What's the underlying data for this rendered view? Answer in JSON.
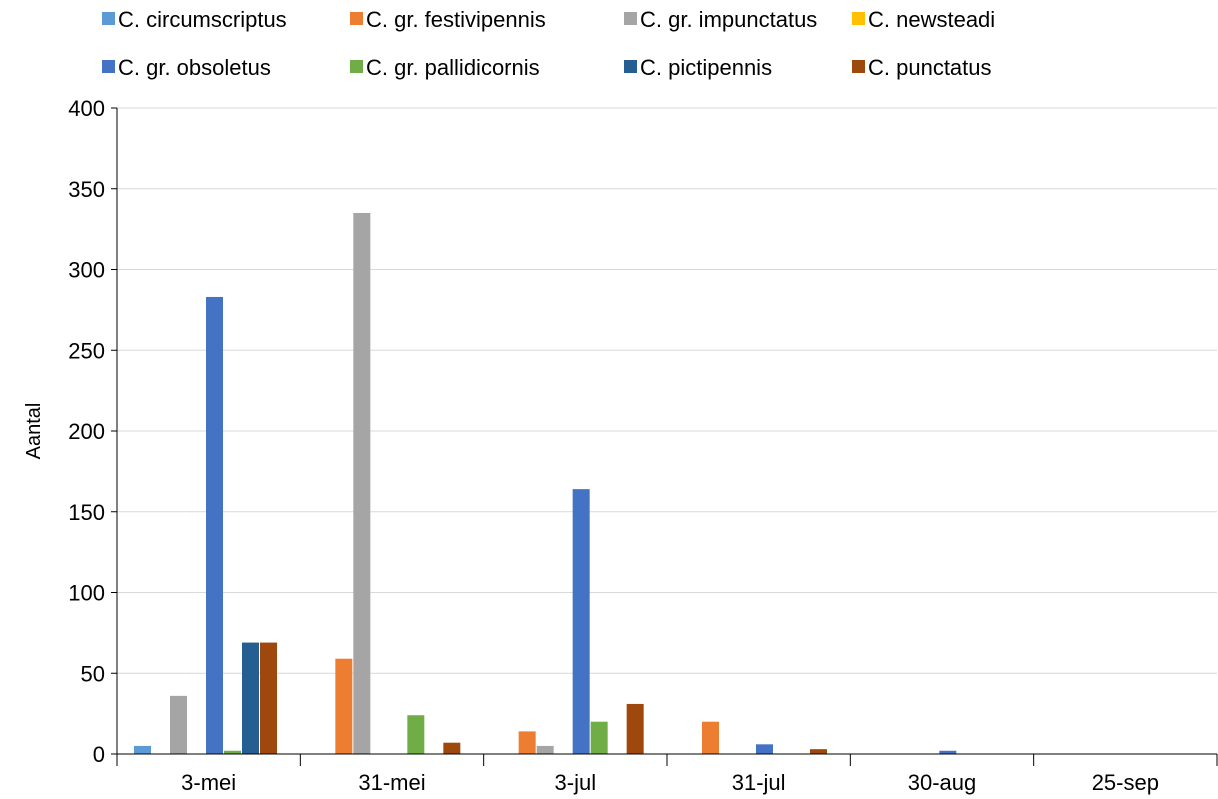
{
  "chart_data": {
    "type": "bar",
    "title": "",
    "xlabel": "",
    "ylabel": "Aantal",
    "ylim": [
      0,
      400
    ],
    "yticks": [
      0,
      50,
      100,
      150,
      200,
      250,
      300,
      350,
      400
    ],
    "grid": true,
    "legend_position": "top",
    "categories": [
      "3-mei",
      "31-mei",
      "3-jul",
      "31-jul",
      "30-aug",
      "25-sep"
    ],
    "series": [
      {
        "name": "C. circumscriptus",
        "color": "#5B9BD5",
        "values": [
          5,
          0,
          0,
          0,
          0,
          0
        ]
      },
      {
        "name": "C. gr. festivipennis",
        "color": "#ED7D31",
        "values": [
          0,
          59,
          14,
          20,
          0,
          0
        ]
      },
      {
        "name": "C. gr. impunctatus",
        "color": "#A5A5A5",
        "values": [
          36,
          335,
          5,
          0,
          0,
          0
        ]
      },
      {
        "name": "C. newsteadi",
        "color": "#FFC000",
        "values": [
          0,
          0,
          0,
          0,
          0,
          0
        ]
      },
      {
        "name": "C. gr. obsoletus",
        "color": "#4472C4",
        "values": [
          283,
          0,
          164,
          6,
          2,
          0
        ]
      },
      {
        "name": "C. gr. pallidicornis",
        "color": "#70AD47",
        "values": [
          2,
          24,
          20,
          0,
          0,
          0
        ]
      },
      {
        "name": "C. pictipennis",
        "color": "#255E91",
        "values": [
          69,
          0,
          0,
          0,
          0,
          0
        ]
      },
      {
        "name": "C. punctatus",
        "color": "#9E480E",
        "values": [
          69,
          7,
          31,
          3,
          0,
          0
        ]
      }
    ]
  }
}
